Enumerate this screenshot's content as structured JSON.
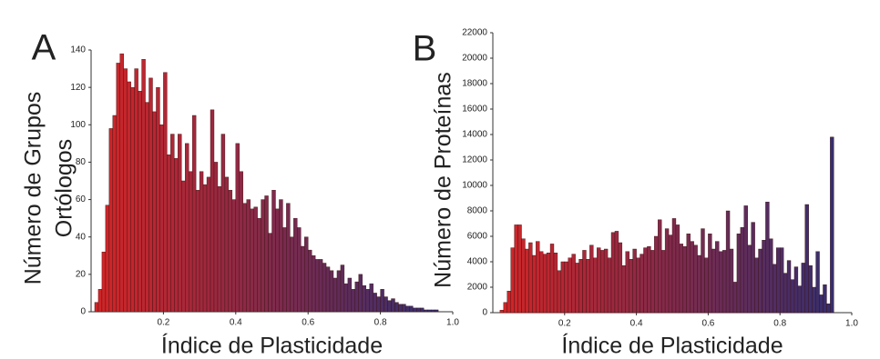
{
  "chart_data": [
    {
      "type": "histogram",
      "annotation": "A",
      "xlabel": "Índice de Plasticidade",
      "ylabel": [
        "Número de Grupos",
        "Ortólogos"
      ],
      "colors": [
        "#d42525",
        "#2b2f72"
      ],
      "bins": [
        0.01,
        0.02,
        0.03,
        0.04,
        0.05,
        0.06,
        0.07,
        0.08,
        0.09,
        0.1,
        0.11,
        0.12,
        0.13,
        0.14,
        0.15,
        0.16,
        0.17,
        0.18,
        0.19,
        0.2,
        0.21,
        0.22,
        0.23,
        0.24,
        0.25,
        0.26,
        0.27,
        0.28,
        0.29,
        0.3,
        0.31,
        0.32,
        0.33,
        0.34,
        0.35,
        0.36,
        0.37,
        0.38,
        0.39,
        0.4,
        0.41,
        0.42,
        0.43,
        0.44,
        0.45,
        0.46,
        0.47,
        0.48,
        0.49,
        0.5,
        0.51,
        0.52,
        0.53,
        0.54,
        0.55,
        0.56,
        0.57,
        0.58,
        0.59,
        0.6,
        0.61,
        0.62,
        0.63,
        0.64,
        0.65,
        0.66,
        0.67,
        0.68,
        0.69,
        0.7,
        0.71,
        0.72,
        0.73,
        0.74,
        0.75,
        0.76,
        0.77,
        0.78,
        0.79,
        0.8,
        0.81,
        0.82,
        0.83,
        0.84,
        0.85,
        0.86,
        0.87,
        0.88,
        0.89,
        0.9,
        0.91,
        0.92,
        0.93,
        0.94,
        0.95,
        0.96,
        0.97
      ],
      "values": [
        5,
        12,
        32,
        57,
        98,
        105,
        133,
        138,
        130,
        123,
        120,
        130,
        118,
        135,
        112,
        125,
        107,
        120,
        100,
        128,
        84,
        95,
        82,
        95,
        70,
        90,
        75,
        105,
        65,
        75,
        68,
        72,
        108,
        80,
        67,
        95,
        72,
        65,
        60,
        90,
        75,
        58,
        60,
        55,
        56,
        50,
        60,
        62,
        42,
        65,
        55,
        60,
        45,
        58,
        40,
        50,
        45,
        35,
        40,
        33,
        30,
        28,
        28,
        26,
        24,
        22,
        18,
        22,
        25,
        15,
        18,
        12,
        16,
        20,
        14,
        12,
        15,
        10,
        8,
        12,
        8,
        6,
        7,
        5,
        4,
        4,
        3,
        3,
        2,
        2,
        2,
        1,
        1,
        1,
        1,
        0
      ],
      "xlim": [
        0,
        1
      ],
      "xticks": [
        0.2,
        0.4,
        0.6,
        0.8,
        {
          "value": 1,
          "label": "1.0"
        }
      ],
      "ylim": [
        0,
        140
      ],
      "yticks": [
        0,
        20,
        40,
        60,
        80,
        100,
        120,
        140
      ]
    },
    {
      "type": "histogram",
      "annotation": "B",
      "xlabel": "Índice de Plasticidade",
      "ylabel": [
        "Número de Proteínas"
      ],
      "colors": [
        "#d42525",
        "#2b2f72"
      ],
      "bins": [
        0.02,
        0.03,
        0.04,
        0.05,
        0.06,
        0.07,
        0.08,
        0.09,
        0.1,
        0.11,
        0.12,
        0.13,
        0.14,
        0.15,
        0.16,
        0.17,
        0.18,
        0.19,
        0.2,
        0.21,
        0.22,
        0.23,
        0.24,
        0.25,
        0.26,
        0.27,
        0.28,
        0.29,
        0.3,
        0.31,
        0.32,
        0.33,
        0.34,
        0.35,
        0.36,
        0.37,
        0.38,
        0.39,
        0.4,
        0.41,
        0.42,
        0.43,
        0.44,
        0.45,
        0.46,
        0.47,
        0.48,
        0.49,
        0.5,
        0.51,
        0.52,
        0.53,
        0.54,
        0.55,
        0.56,
        0.57,
        0.58,
        0.59,
        0.6,
        0.61,
        0.62,
        0.63,
        0.64,
        0.65,
        0.66,
        0.67,
        0.68,
        0.69,
        0.7,
        0.71,
        0.72,
        0.73,
        0.74,
        0.75,
        0.76,
        0.77,
        0.78,
        0.79,
        0.8,
        0.81,
        0.82,
        0.83,
        0.84,
        0.85,
        0.86,
        0.87,
        0.88,
        0.89,
        0.9,
        0.91,
        0.92,
        0.93,
        0.94,
        0.95
      ],
      "values": [
        200,
        800,
        1700,
        5100,
        6900,
        6900,
        5800,
        5000,
        5500,
        4500,
        5600,
        4800,
        4600,
        4700,
        5400,
        4700,
        3300,
        4000,
        4000,
        4300,
        4600,
        3900,
        4200,
        4900,
        4200,
        5300,
        4300,
        5100,
        4900,
        5000,
        4300,
        6300,
        6400,
        5500,
        3700,
        4800,
        4200,
        5000,
        4300,
        4600,
        5100,
        5200,
        4900,
        6000,
        7300,
        4900,
        6600,
        6100,
        7400,
        6900,
        5400,
        5200,
        6200,
        5600,
        5300,
        4500,
        6600,
        4300,
        6200,
        5000,
        5600,
        4800,
        4900,
        8000,
        5000,
        2400,
        6200,
        6700,
        8400,
        5300,
        7100,
        4300,
        5000,
        5700,
        8700,
        5800,
        3800,
        5100,
        5100,
        3100,
        4100,
        2600,
        3600,
        2100,
        3900,
        8500,
        3700,
        2000,
        4800,
        1400,
        2200,
        700,
        13800
      ],
      "xlim": [
        0,
        1
      ],
      "xticks": [
        0.2,
        0.4,
        0.6,
        0.8,
        {
          "value": 1,
          "label": "1.0"
        }
      ],
      "ylim": [
        0,
        22000
      ],
      "yticks": [
        0,
        2000,
        4000,
        6000,
        8000,
        10000,
        12000,
        14000,
        16000,
        18000,
        20000,
        22000
      ]
    }
  ]
}
